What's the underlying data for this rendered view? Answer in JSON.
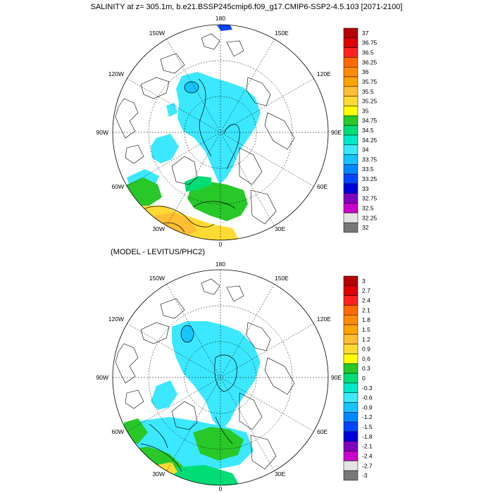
{
  "title": "SALINITY at z= 305.1m, b.e21.BSSP245cmip6.f09_g17.CMIP6-SSP2-4.5.103 [2071-2100]",
  "subtitle": "(MODEL - LEVITUS/PHC2)",
  "longitude_labels": {
    "top": "180",
    "upper_left": "150W",
    "upper_right": "150E",
    "mid_upper_left": "120W",
    "mid_upper_right": "120E",
    "left": "90W",
    "right": "90E",
    "lower_left": "60W",
    "lower_right": "60E",
    "bottom_left": "30W",
    "bottom_right": "30E",
    "bottom": "0"
  },
  "colorbar_top": {
    "labels": [
      "37",
      "36.75",
      "36.5",
      "36.25",
      "36",
      "35.75",
      "35.5",
      "35.25",
      "35",
      "34.75",
      "34.5",
      "34.25",
      "34",
      "33.75",
      "33.5",
      "33.25",
      "33",
      "32.75",
      "32.5",
      "32.25",
      "32"
    ],
    "colors": [
      "#b40000",
      "#dc0000",
      "#ff2020",
      "#ff6a00",
      "#ff8c00",
      "#ffa500",
      "#ffbe33",
      "#ffda33",
      "#ffff00",
      "#28c828",
      "#00dd77",
      "#00e8c8",
      "#3ce8ff",
      "#16c4ff",
      "#0088ff",
      "#0044ff",
      "#0000dd",
      "#8000c0",
      "#c800c8",
      "#e4e4e4",
      "#777777"
    ]
  },
  "colorbar_bottom": {
    "labels": [
      "3",
      "2.7",
      "2.4",
      "2.1",
      "1.8",
      "1.5",
      "1.2",
      "0.9",
      "0.6",
      "0.3",
      "0",
      "-0.3",
      "-0.6",
      "-0.9",
      "-1.2",
      "-1.5",
      "-1.8",
      "-2.1",
      "-2.4",
      "-2.7",
      "-3"
    ],
    "colors": [
      "#b40000",
      "#dc0000",
      "#ff2020",
      "#ff6a00",
      "#ff8c00",
      "#ffa500",
      "#ffbe33",
      "#ffda33",
      "#ffff00",
      "#28c828",
      "#00dd77",
      "#00e8c8",
      "#3ce8ff",
      "#16c4ff",
      "#0088ff",
      "#0044ff",
      "#0000dd",
      "#8000c0",
      "#c800c8",
      "#e4e4e4",
      "#777777"
    ]
  }
}
